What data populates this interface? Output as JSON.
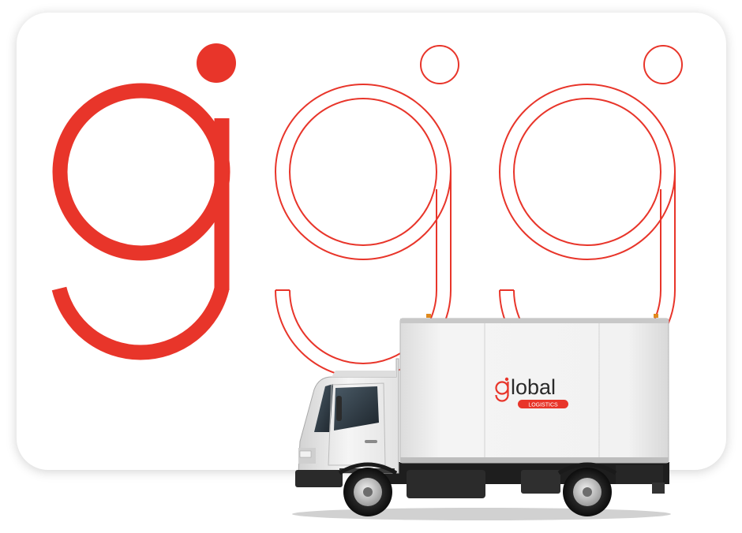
{
  "colors": {
    "accent": "#e8352a",
    "background": "#ffffff",
    "truck_body": "#eeeeee"
  },
  "truck": {
    "brand_word": "lobal",
    "brand_sub": "LOGISTICS"
  },
  "icons": [
    "filled-g-logo-icon",
    "outline-g-logo-icon",
    "outline-g-logo-icon"
  ]
}
